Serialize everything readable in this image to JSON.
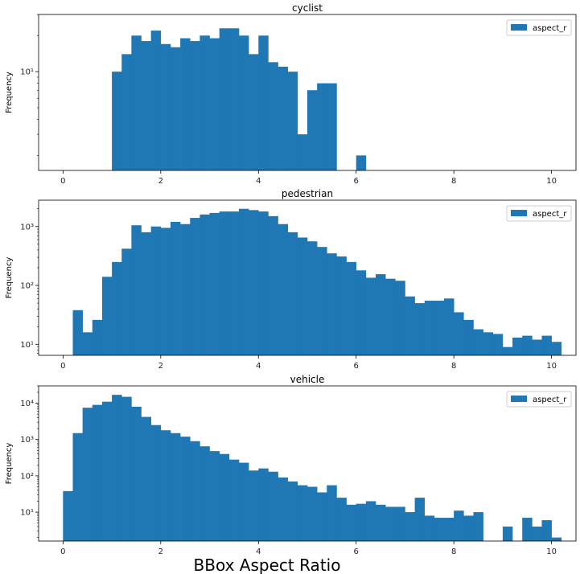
{
  "figure_xlabel": "BBox Aspect Ratio",
  "chart_data": [
    {
      "type": "bar",
      "title": "cyclist",
      "ylabel": "Frequency",
      "legend": [
        "aspect_r"
      ],
      "legend_position": "top-right",
      "yscale": "log",
      "ylim": [
        1.5,
        30
      ],
      "y_ticks": [
        10
      ],
      "y_tick_labels": [
        "10¹"
      ],
      "xlim": [
        -0.5,
        10.5
      ],
      "x_ticks": [
        0,
        2,
        4,
        6,
        8,
        10
      ],
      "bin_width": 0.2,
      "color": "#1f77b4",
      "bins": [
        [
          1.0,
          10
        ],
        [
          1.2,
          14
        ],
        [
          1.4,
          20
        ],
        [
          1.6,
          18
        ],
        [
          1.8,
          22
        ],
        [
          2.0,
          17
        ],
        [
          2.2,
          16
        ],
        [
          2.4,
          19
        ],
        [
          2.6,
          18
        ],
        [
          2.8,
          20
        ],
        [
          3.0,
          19
        ],
        [
          3.2,
          23
        ],
        [
          3.4,
          23
        ],
        [
          3.6,
          20
        ],
        [
          3.8,
          14
        ],
        [
          4.0,
          20
        ],
        [
          4.2,
          12
        ],
        [
          4.4,
          11
        ],
        [
          4.6,
          10
        ],
        [
          4.8,
          3
        ],
        [
          5.0,
          7
        ],
        [
          5.2,
          8
        ],
        [
          5.4,
          8
        ],
        [
          6.0,
          2
        ],
        [
          8.0,
          1.5
        ]
      ]
    },
    {
      "type": "bar",
      "title": "pedestrian",
      "ylabel": "Frequency",
      "legend": [
        "aspect_r"
      ],
      "legend_position": "top-right",
      "yscale": "log",
      "ylim": [
        6.5,
        2800
      ],
      "y_ticks": [
        10,
        100,
        1000
      ],
      "y_tick_labels": [
        "10¹",
        "10²",
        "10³"
      ],
      "xlim": [
        -0.5,
        10.5
      ],
      "x_ticks": [
        0,
        2,
        4,
        6,
        8,
        10
      ],
      "bin_width": 0.2,
      "color": "#1f77b4",
      "bins": [
        [
          0.2,
          38
        ],
        [
          0.4,
          16
        ],
        [
          0.6,
          26
        ],
        [
          0.8,
          140
        ],
        [
          1.0,
          250
        ],
        [
          1.2,
          420
        ],
        [
          1.4,
          1050
        ],
        [
          1.6,
          800
        ],
        [
          1.8,
          1000
        ],
        [
          2.0,
          950
        ],
        [
          2.2,
          1200
        ],
        [
          2.4,
          1100
        ],
        [
          2.6,
          1400
        ],
        [
          2.8,
          1600
        ],
        [
          3.0,
          1700
        ],
        [
          3.2,
          1800
        ],
        [
          3.4,
          1800
        ],
        [
          3.6,
          2000
        ],
        [
          3.8,
          1900
        ],
        [
          4.0,
          1800
        ],
        [
          4.2,
          1500
        ],
        [
          4.4,
          1100
        ],
        [
          4.6,
          800
        ],
        [
          4.8,
          650
        ],
        [
          5.0,
          560
        ],
        [
          5.2,
          450
        ],
        [
          5.4,
          350
        ],
        [
          5.6,
          310
        ],
        [
          5.8,
          250
        ],
        [
          6.0,
          180
        ],
        [
          6.2,
          135
        ],
        [
          6.4,
          155
        ],
        [
          6.6,
          130
        ],
        [
          6.8,
          120
        ],
        [
          7.0,
          65
        ],
        [
          7.2,
          50
        ],
        [
          7.4,
          55
        ],
        [
          7.6,
          55
        ],
        [
          7.8,
          60
        ],
        [
          8.0,
          35
        ],
        [
          8.2,
          26
        ],
        [
          8.4,
          18
        ],
        [
          8.6,
          16
        ],
        [
          8.8,
          15
        ],
        [
          9.0,
          9
        ],
        [
          9.2,
          13
        ],
        [
          9.4,
          14
        ],
        [
          9.6,
          12
        ],
        [
          9.8,
          14
        ],
        [
          10.0,
          11
        ]
      ]
    },
    {
      "type": "bar",
      "title": "vehicle",
      "ylabel": "Frequency",
      "legend": [
        "aspect_r"
      ],
      "legend_position": "top-right",
      "yscale": "log",
      "ylim": [
        1.6,
        30000
      ],
      "y_ticks": [
        10,
        100,
        1000,
        10000
      ],
      "y_tick_labels": [
        "10¹",
        "10²",
        "10³",
        "10⁴"
      ],
      "xlim": [
        -0.5,
        10.5
      ],
      "x_ticks": [
        0,
        2,
        4,
        6,
        8,
        10
      ],
      "bin_width": 0.2,
      "color": "#1f77b4",
      "bins": [
        [
          0.0,
          38
        ],
        [
          0.2,
          1500
        ],
        [
          0.4,
          7500
        ],
        [
          0.6,
          9000
        ],
        [
          0.8,
          11000
        ],
        [
          1.0,
          17000
        ],
        [
          1.2,
          15000
        ],
        [
          1.4,
          8000
        ],
        [
          1.6,
          4200
        ],
        [
          1.8,
          2500
        ],
        [
          2.0,
          1800
        ],
        [
          2.2,
          1500
        ],
        [
          2.4,
          1200
        ],
        [
          2.6,
          900
        ],
        [
          2.8,
          650
        ],
        [
          3.0,
          480
        ],
        [
          3.2,
          400
        ],
        [
          3.4,
          280
        ],
        [
          3.6,
          230
        ],
        [
          3.8,
          140
        ],
        [
          4.0,
          160
        ],
        [
          4.2,
          130
        ],
        [
          4.4,
          90
        ],
        [
          4.6,
          70
        ],
        [
          4.8,
          55
        ],
        [
          5.0,
          50
        ],
        [
          5.2,
          35
        ],
        [
          5.4,
          55
        ],
        [
          5.6,
          25
        ],
        [
          5.8,
          16
        ],
        [
          6.0,
          17
        ],
        [
          6.2,
          20
        ],
        [
          6.4,
          16
        ],
        [
          6.6,
          14
        ],
        [
          6.8,
          14
        ],
        [
          7.0,
          10
        ],
        [
          7.2,
          25
        ],
        [
          7.4,
          8
        ],
        [
          7.6,
          7
        ],
        [
          7.8,
          7
        ],
        [
          8.0,
          11
        ],
        [
          8.2,
          8
        ],
        [
          8.4,
          10
        ],
        [
          8.6,
          1.6
        ],
        [
          8.8,
          1.6
        ],
        [
          9.0,
          4
        ],
        [
          9.2,
          1.6
        ],
        [
          9.4,
          7
        ],
        [
          9.6,
          4
        ],
        [
          9.8,
          6
        ],
        [
          10.0,
          2
        ]
      ]
    }
  ]
}
